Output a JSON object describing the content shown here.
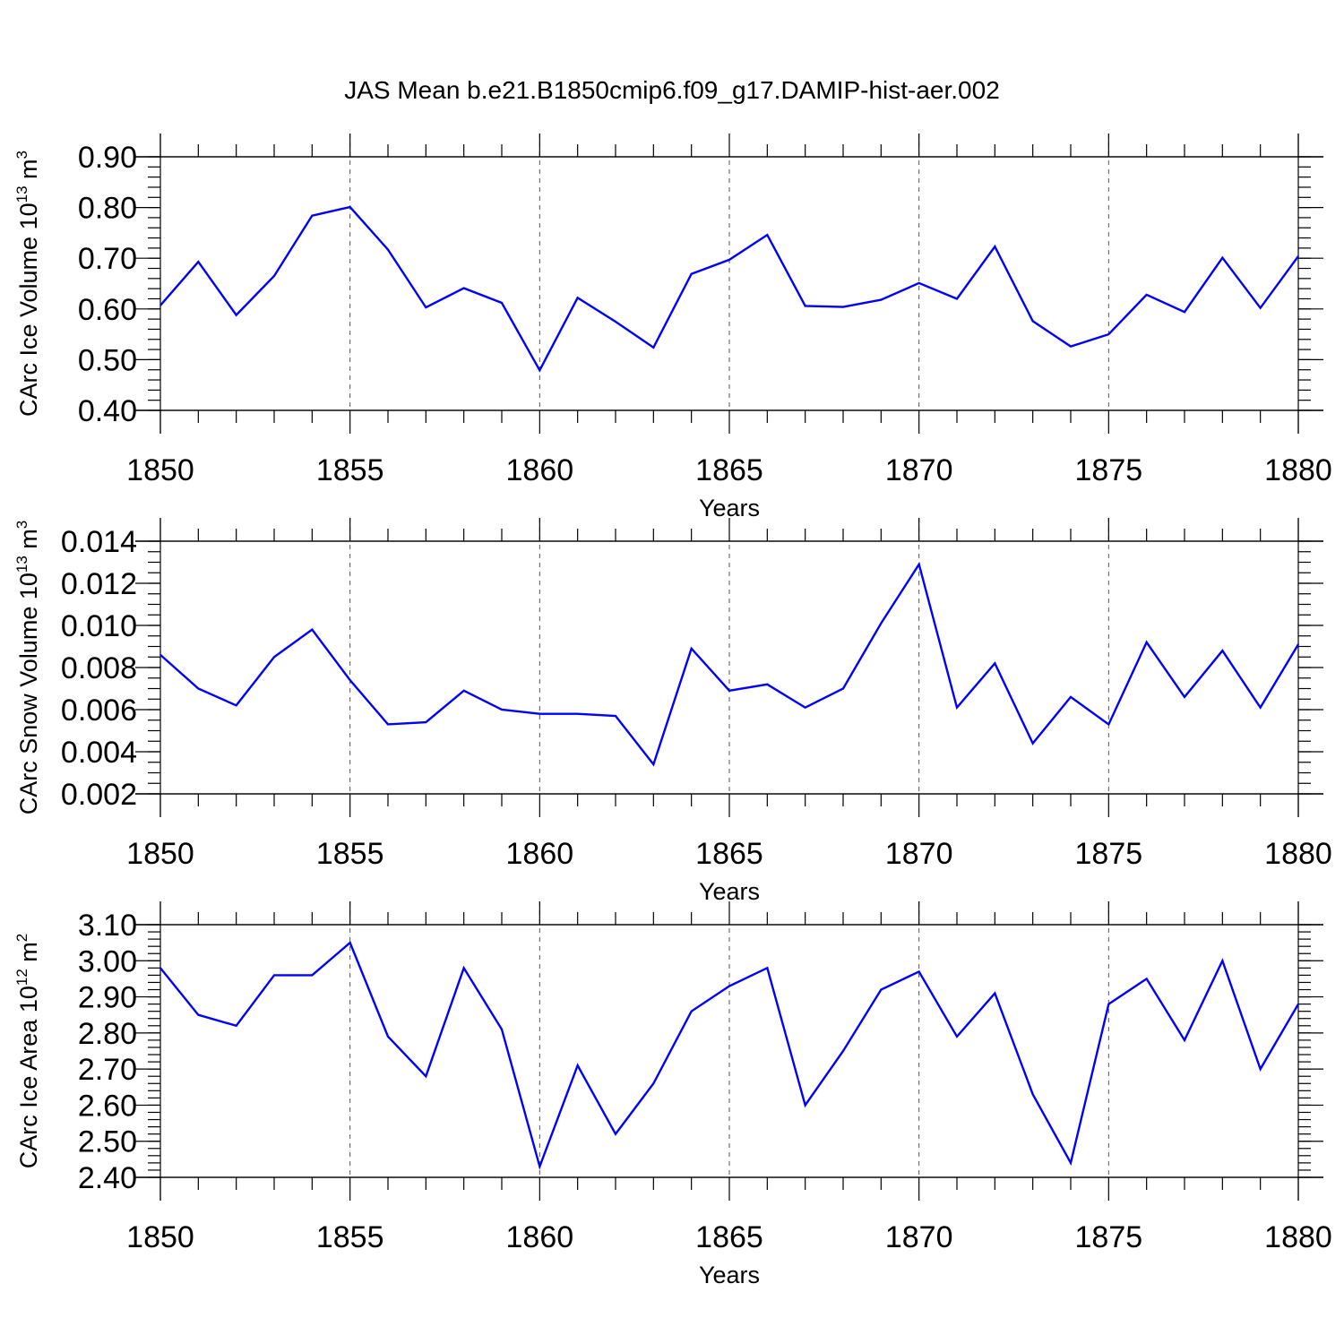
{
  "chart_data": {
    "title": "JAS Mean b.e21.B1850cmip6.f09_g17.DAMIP-hist-aer.002",
    "panels": [
      {
        "type": "line",
        "title": "",
        "xlabel": "Years",
        "ylabel": "CArc Ice Volume 10",
        "ylabel_exp": "13",
        "ylabel_unit": " m",
        "ylabel_unit_exp": "3",
        "xlim": [
          1850,
          1880
        ],
        "ylim": [
          0.4,
          0.9
        ],
        "x_ticks": [
          1850,
          1855,
          1860,
          1865,
          1870,
          1875,
          1880
        ],
        "x_tick_labels": [
          "1850",
          "1855",
          "1860",
          "1865",
          "1870",
          "1875",
          "1880"
        ],
        "y_ticks": [
          0.4,
          0.5,
          0.6,
          0.7,
          0.8,
          0.9
        ],
        "y_tick_labels": [
          "0.40",
          "0.50",
          "0.60",
          "0.70",
          "0.80",
          "0.90"
        ],
        "y_minor_step": 0.02,
        "x": [
          1850,
          1851,
          1852,
          1853,
          1854,
          1855,
          1856,
          1857,
          1858,
          1859,
          1860,
          1861,
          1862,
          1863,
          1864,
          1865,
          1866,
          1867,
          1868,
          1869,
          1870,
          1871,
          1872,
          1873,
          1874,
          1875,
          1876,
          1877,
          1878,
          1879,
          1880
        ],
        "series": [
          {
            "name": "CArc Ice Volume",
            "values": [
              0.607,
              0.693,
              0.588,
              0.665,
              0.784,
              0.801,
              0.717,
              0.603,
              0.641,
              0.612,
              0.479,
              0.622,
              0.575,
              0.524,
              0.669,
              0.697,
              0.746,
              0.606,
              0.604,
              0.618,
              0.651,
              0.62,
              0.723,
              0.576,
              0.526,
              0.55,
              0.628,
              0.594,
              0.701,
              0.602,
              0.704
            ]
          }
        ]
      },
      {
        "type": "line",
        "title": "",
        "xlabel": "Years",
        "ylabel": "CArc Snow Volume 10",
        "ylabel_exp": "13",
        "ylabel_unit": " m",
        "ylabel_unit_exp": "3",
        "xlim": [
          1850,
          1880
        ],
        "ylim": [
          0.002,
          0.014
        ],
        "x_ticks": [
          1850,
          1855,
          1860,
          1865,
          1870,
          1875,
          1880
        ],
        "x_tick_labels": [
          "1850",
          "1855",
          "1860",
          "1865",
          "1870",
          "1875",
          "1880"
        ],
        "y_ticks": [
          0.002,
          0.004,
          0.006,
          0.008,
          0.01,
          0.012,
          0.014
        ],
        "y_tick_labels": [
          "0.002",
          "0.004",
          "0.006",
          "0.008",
          "0.010",
          "0.012",
          "0.014"
        ],
        "y_minor_step": 0.0005,
        "x": [
          1850,
          1851,
          1852,
          1853,
          1854,
          1855,
          1856,
          1857,
          1858,
          1859,
          1860,
          1861,
          1862,
          1863,
          1864,
          1865,
          1866,
          1867,
          1868,
          1869,
          1870,
          1871,
          1872,
          1873,
          1874,
          1875,
          1876,
          1877,
          1878,
          1879,
          1880
        ],
        "series": [
          {
            "name": "CArc Snow Volume",
            "values": [
              0.0086,
              0.007,
              0.0062,
              0.0085,
              0.0098,
              0.0074,
              0.0053,
              0.0054,
              0.0069,
              0.006,
              0.0058,
              0.0058,
              0.0057,
              0.0034,
              0.0089,
              0.0069,
              0.0072,
              0.0061,
              0.007,
              0.0101,
              0.0129,
              0.0061,
              0.0082,
              0.0044,
              0.0066,
              0.0053,
              0.0092,
              0.0066,
              0.0088,
              0.0061,
              0.0091
            ]
          }
        ]
      },
      {
        "type": "line",
        "title": "",
        "xlabel": "Years",
        "ylabel": "CArc Ice Area 10",
        "ylabel_exp": "12",
        "ylabel_unit": " m",
        "ylabel_unit_exp": "2",
        "xlim": [
          1850,
          1880
        ],
        "ylim": [
          2.4,
          3.1
        ],
        "x_ticks": [
          1850,
          1855,
          1860,
          1865,
          1870,
          1875,
          1880
        ],
        "x_tick_labels": [
          "1850",
          "1855",
          "1860",
          "1865",
          "1870",
          "1875",
          "1880"
        ],
        "y_ticks": [
          2.4,
          2.5,
          2.6,
          2.7,
          2.8,
          2.9,
          3.0,
          3.1
        ],
        "y_tick_labels": [
          "2.40",
          "2.50",
          "2.60",
          "2.70",
          "2.80",
          "2.90",
          "3.00",
          "3.10"
        ],
        "y_minor_step": 0.02,
        "x": [
          1850,
          1851,
          1852,
          1853,
          1854,
          1855,
          1856,
          1857,
          1858,
          1859,
          1860,
          1861,
          1862,
          1863,
          1864,
          1865,
          1866,
          1867,
          1868,
          1869,
          1870,
          1871,
          1872,
          1873,
          1874,
          1875,
          1876,
          1877,
          1878,
          1879,
          1880
        ],
        "series": [
          {
            "name": "CArc Ice Area",
            "values": [
              2.98,
              2.85,
              2.82,
              2.96,
              2.96,
              3.05,
              2.79,
              2.68,
              2.98,
              2.81,
              2.43,
              2.71,
              2.52,
              2.66,
              2.86,
              2.93,
              2.98,
              2.6,
              2.75,
              2.92,
              2.97,
              2.79,
              2.91,
              2.63,
              2.44,
              2.88,
              2.95,
              2.78,
              3.0,
              2.7,
              2.88
            ]
          }
        ]
      }
    ],
    "colors": {
      "line": "#0000ff",
      "axis": "#000000",
      "grid": "#555555"
    }
  }
}
